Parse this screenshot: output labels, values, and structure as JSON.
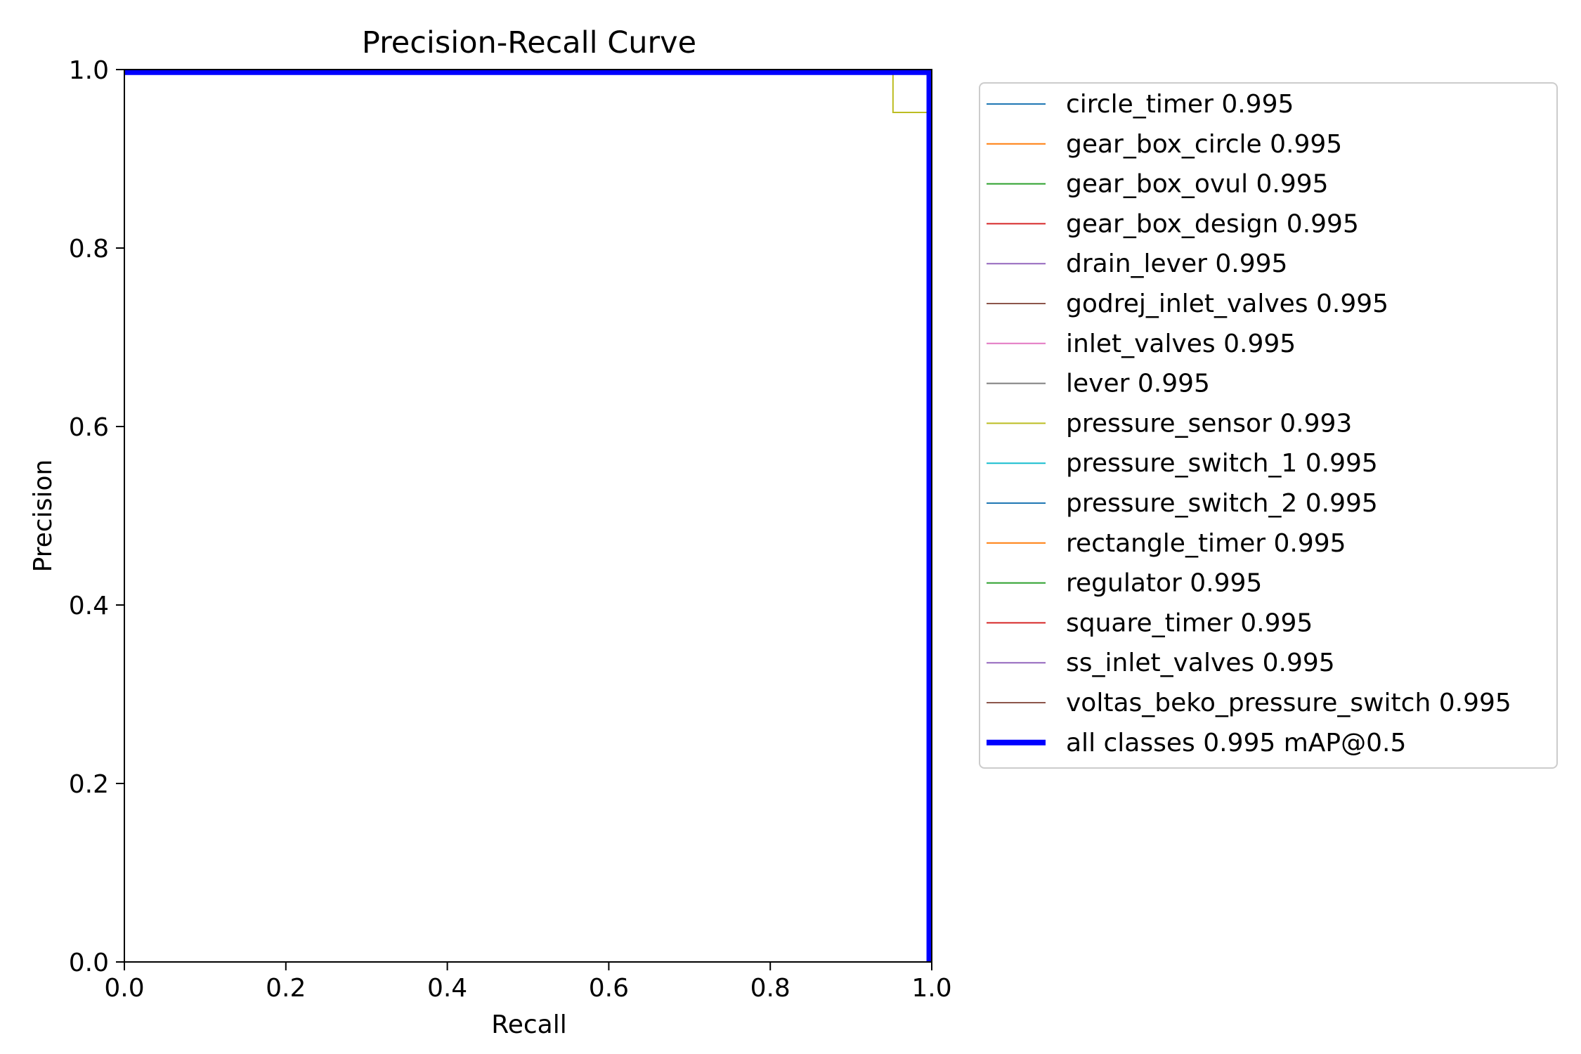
{
  "chart_data": {
    "type": "line",
    "title": "Precision-Recall Curve",
    "xlabel": "Recall",
    "ylabel": "Precision",
    "xlim": [
      0,
      1
    ],
    "ylim": [
      0,
      1
    ],
    "grid": false,
    "legend_position": "outside-right",
    "x_ticks": [
      "0.0",
      "0.2",
      "0.4",
      "0.6",
      "0.8",
      "1.0"
    ],
    "y_ticks": [
      "0.0",
      "0.2",
      "0.4",
      "0.6",
      "0.8",
      "1.0"
    ],
    "series": [
      {
        "name": "circle_timer",
        "score": "0.995",
        "color": "#1f77b4",
        "x": [
          0,
          1,
          1
        ],
        "y": [
          1,
          1,
          0
        ]
      },
      {
        "name": "gear_box_circle",
        "score": "0.995",
        "color": "#ff7f0e",
        "x": [
          0,
          1,
          1
        ],
        "y": [
          1,
          1,
          0
        ]
      },
      {
        "name": "gear_box_ovul",
        "score": "0.995",
        "color": "#2ca02c",
        "x": [
          0,
          1,
          1
        ],
        "y": [
          1,
          1,
          0
        ]
      },
      {
        "name": "gear_box_design",
        "score": "0.995",
        "color": "#d62728",
        "x": [
          0,
          1,
          1
        ],
        "y": [
          1,
          1,
          0
        ]
      },
      {
        "name": "drain_lever",
        "score": "0.995",
        "color": "#9467bd",
        "x": [
          0,
          1,
          1
        ],
        "y": [
          1,
          1,
          0
        ]
      },
      {
        "name": "godrej_inlet_valves",
        "score": "0.995",
        "color": "#8c564b",
        "x": [
          0,
          1,
          1
        ],
        "y": [
          1,
          1,
          0
        ]
      },
      {
        "name": "inlet_valves",
        "score": "0.995",
        "color": "#e377c2",
        "x": [
          0,
          1,
          1
        ],
        "y": [
          1,
          1,
          0
        ]
      },
      {
        "name": "lever",
        "score": "0.995",
        "color": "#7f7f7f",
        "x": [
          0,
          1,
          1
        ],
        "y": [
          1,
          1,
          0
        ]
      },
      {
        "name": "pressure_sensor",
        "score": "0.993",
        "color": "#bcbd22",
        "x": [
          0,
          0.952,
          0.952,
          1,
          1
        ],
        "y": [
          1,
          1,
          0.952,
          0.952,
          0
        ]
      },
      {
        "name": "pressure_switch_1",
        "score": "0.995",
        "color": "#17becf",
        "x": [
          0,
          1,
          1
        ],
        "y": [
          1,
          1,
          0
        ]
      },
      {
        "name": "pressure_switch_2",
        "score": "0.995",
        "color": "#1f77b4",
        "x": [
          0,
          1,
          1
        ],
        "y": [
          1,
          1,
          0
        ]
      },
      {
        "name": "rectangle_timer",
        "score": "0.995",
        "color": "#ff7f0e",
        "x": [
          0,
          1,
          1
        ],
        "y": [
          1,
          1,
          0
        ]
      },
      {
        "name": "regulator",
        "score": "0.995",
        "color": "#2ca02c",
        "x": [
          0,
          1,
          1
        ],
        "y": [
          1,
          1,
          0
        ]
      },
      {
        "name": "square_timer",
        "score": "0.995",
        "color": "#d62728",
        "x": [
          0,
          1,
          1
        ],
        "y": [
          1,
          1,
          0
        ]
      },
      {
        "name": "ss_inlet_valves",
        "score": "0.995",
        "color": "#9467bd",
        "x": [
          0,
          1,
          1
        ],
        "y": [
          1,
          1,
          0
        ]
      },
      {
        "name": "voltas_beko_pressure_switch",
        "score": "0.995",
        "color": "#8c564b",
        "x": [
          0,
          1,
          1
        ],
        "y": [
          1,
          1,
          0
        ]
      }
    ],
    "summary_series": {
      "name": "all classes 0.995 mAP@0.5",
      "color": "#0000ff",
      "x": [
        0,
        0.997,
        0.997
      ],
      "y": [
        0.997,
        0.997,
        0
      ]
    }
  }
}
